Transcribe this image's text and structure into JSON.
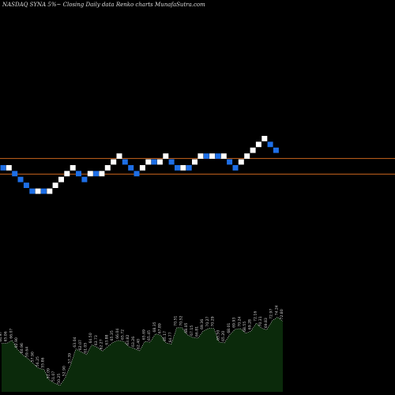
{
  "header": {
    "ticker": "NASDAQ SYNA 5%",
    "description": "Closing Daily data Renko charts",
    "site": "MunafaSutra.com"
  },
  "chart_data": {
    "type": "renko",
    "title": "NASDAQ SYNA 5% Closing Daily data Renko charts MunafaSutra.com",
    "colors": {
      "up_brick": "#ffffff",
      "down_brick": "#1e6fe6",
      "reference_line": "#c8641e",
      "volume_fill": "#0b2a0b",
      "volume_line": "#d8d8d8",
      "volume_label": "#cfcfcf",
      "background": "#000000"
    },
    "reference_lines": [
      79.84,
      75.27
    ],
    "bricks": [
      {
        "dir": "down",
        "low": 76.2
      },
      {
        "dir": "up",
        "low": 76.2
      },
      {
        "dir": "down",
        "low": 74.5
      },
      {
        "dir": "down",
        "low": 72.8
      },
      {
        "dir": "down",
        "low": 71.1
      },
      {
        "dir": "down",
        "low": 69.4
      },
      {
        "dir": "up",
        "low": 69.4
      },
      {
        "dir": "down",
        "low": 69.4
      },
      {
        "dir": "up",
        "low": 69.4
      },
      {
        "dir": "up",
        "low": 71.1
      },
      {
        "dir": "up",
        "low": 72.8
      },
      {
        "dir": "up",
        "low": 74.5
      },
      {
        "dir": "up",
        "low": 76.2
      },
      {
        "dir": "down",
        "low": 74.5
      },
      {
        "dir": "down",
        "low": 72.8
      },
      {
        "dir": "up",
        "low": 74.5
      },
      {
        "dir": "down",
        "low": 74.5
      },
      {
        "dir": "up",
        "low": 74.5
      },
      {
        "dir": "up",
        "low": 76.2
      },
      {
        "dir": "up",
        "low": 77.9
      },
      {
        "dir": "up",
        "low": 79.6
      },
      {
        "dir": "down",
        "low": 77.9
      },
      {
        "dir": "down",
        "low": 76.2
      },
      {
        "dir": "down",
        "low": 74.5
      },
      {
        "dir": "up",
        "low": 76.2
      },
      {
        "dir": "up",
        "low": 77.9
      },
      {
        "dir": "down",
        "low": 77.9
      },
      {
        "dir": "up",
        "low": 77.9
      },
      {
        "dir": "up",
        "low": 79.6
      },
      {
        "dir": "down",
        "low": 77.9
      },
      {
        "dir": "down",
        "low": 76.2
      },
      {
        "dir": "up",
        "low": 76.2
      },
      {
        "dir": "down",
        "low": 76.2
      },
      {
        "dir": "up",
        "low": 77.9
      },
      {
        "dir": "up",
        "low": 79.6
      },
      {
        "dir": "down",
        "low": 79.6
      },
      {
        "dir": "up",
        "low": 79.6
      },
      {
        "dir": "down",
        "low": 79.6
      },
      {
        "dir": "up",
        "low": 79.6
      },
      {
        "dir": "down",
        "low": 77.9
      },
      {
        "dir": "down",
        "low": 76.2
      },
      {
        "dir": "up",
        "low": 77.9
      },
      {
        "dir": "up",
        "low": 79.6
      },
      {
        "dir": "up",
        "low": 81.3
      },
      {
        "dir": "up",
        "low": 83
      },
      {
        "dir": "up",
        "low": 84.7
      },
      {
        "dir": "down",
        "low": 83
      },
      {
        "dir": "down",
        "low": 81.3
      }
    ],
    "volume_labels": [
      "64.97",
      "65.06",
      "66.07",
      "62.90",
      "60.96",
      "59.64",
      "57.90",
      "56.25",
      "55.86",
      "52.09",
      "51.07",
      "50.25",
      "52.90",
      "57.39",
      "63.04",
      "62.07",
      "61.05",
      "64.50",
      "63.73",
      "62.27",
      "63.88",
      "65.35",
      "66.04",
      "65.72",
      "63.82",
      "63.26",
      "62.40",
      "65.69",
      "65.45",
      "68.35",
      "67.89",
      "65.17",
      "64.77",
      "70.51",
      "70.52",
      "68.05",
      "67.15",
      "66.81",
      "69.36",
      "70.27",
      "70.29",
      "65.50",
      "65.20",
      "68.01",
      "69.93",
      "70.24",
      "68.55",
      "69.28",
      "72.16",
      "70.31",
      "69.83",
      "72.97",
      "74.24",
      "72.80"
    ],
    "volume_ylim": [
      48,
      76
    ]
  }
}
